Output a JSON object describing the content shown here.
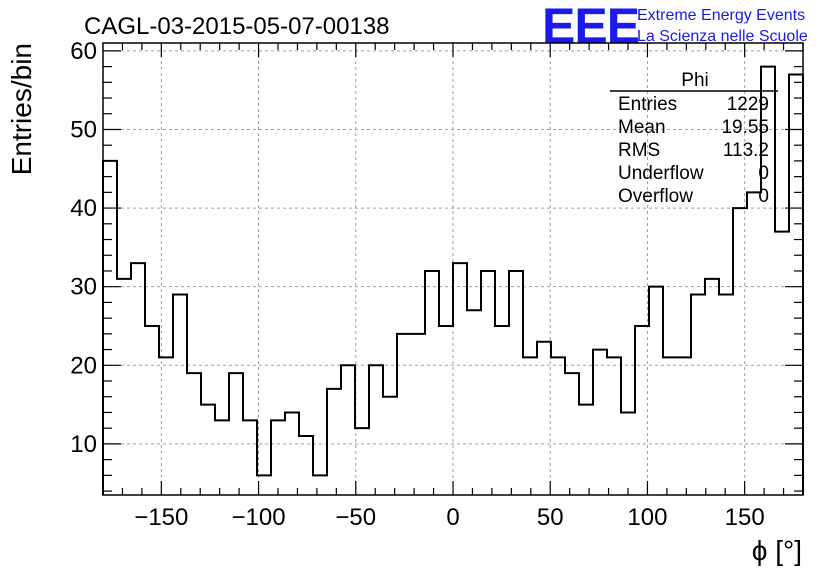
{
  "title": "CAGL-03-2015-05-07-00138",
  "logo": {
    "mark": "EEE",
    "line1": "Extreme Energy Events",
    "line2": "La Scienza nelle Scuole",
    "color": "#1a1aee"
  },
  "stats": {
    "name": "Phi",
    "rows": [
      {
        "label": "Entries",
        "value": "1229"
      },
      {
        "label": "Mean",
        "value": "19.55"
      },
      {
        "label": "RMS",
        "value": "113.2"
      },
      {
        "label": "Underflow",
        "value": "0"
      },
      {
        "label": "Overflow",
        "value": "0"
      }
    ]
  },
  "chart_data": {
    "type": "histogram",
    "xlabel": "ϕ [°]",
    "ylabel": "Entries/bin",
    "xlim": [
      -180,
      180
    ],
    "ylim": [
      3.5,
      61
    ],
    "bin_width": 7.2,
    "x_ticks": [
      -150,
      -100,
      -50,
      0,
      50,
      100,
      150
    ],
    "y_ticks": [
      10,
      20,
      30,
      40,
      50,
      60
    ],
    "grid": true,
    "line_color": "#000000",
    "values": [
      46,
      31,
      33,
      25,
      21,
      29,
      19,
      15,
      13,
      19,
      13,
      6,
      13,
      14,
      11,
      6,
      17,
      20,
      12,
      20,
      16,
      24,
      24,
      32,
      25,
      33,
      27,
      32,
      25,
      32,
      21,
      23,
      21,
      19,
      15,
      22,
      21,
      14,
      25,
      30,
      21,
      21,
      29,
      31,
      29,
      40,
      42,
      58,
      37,
      57
    ]
  }
}
